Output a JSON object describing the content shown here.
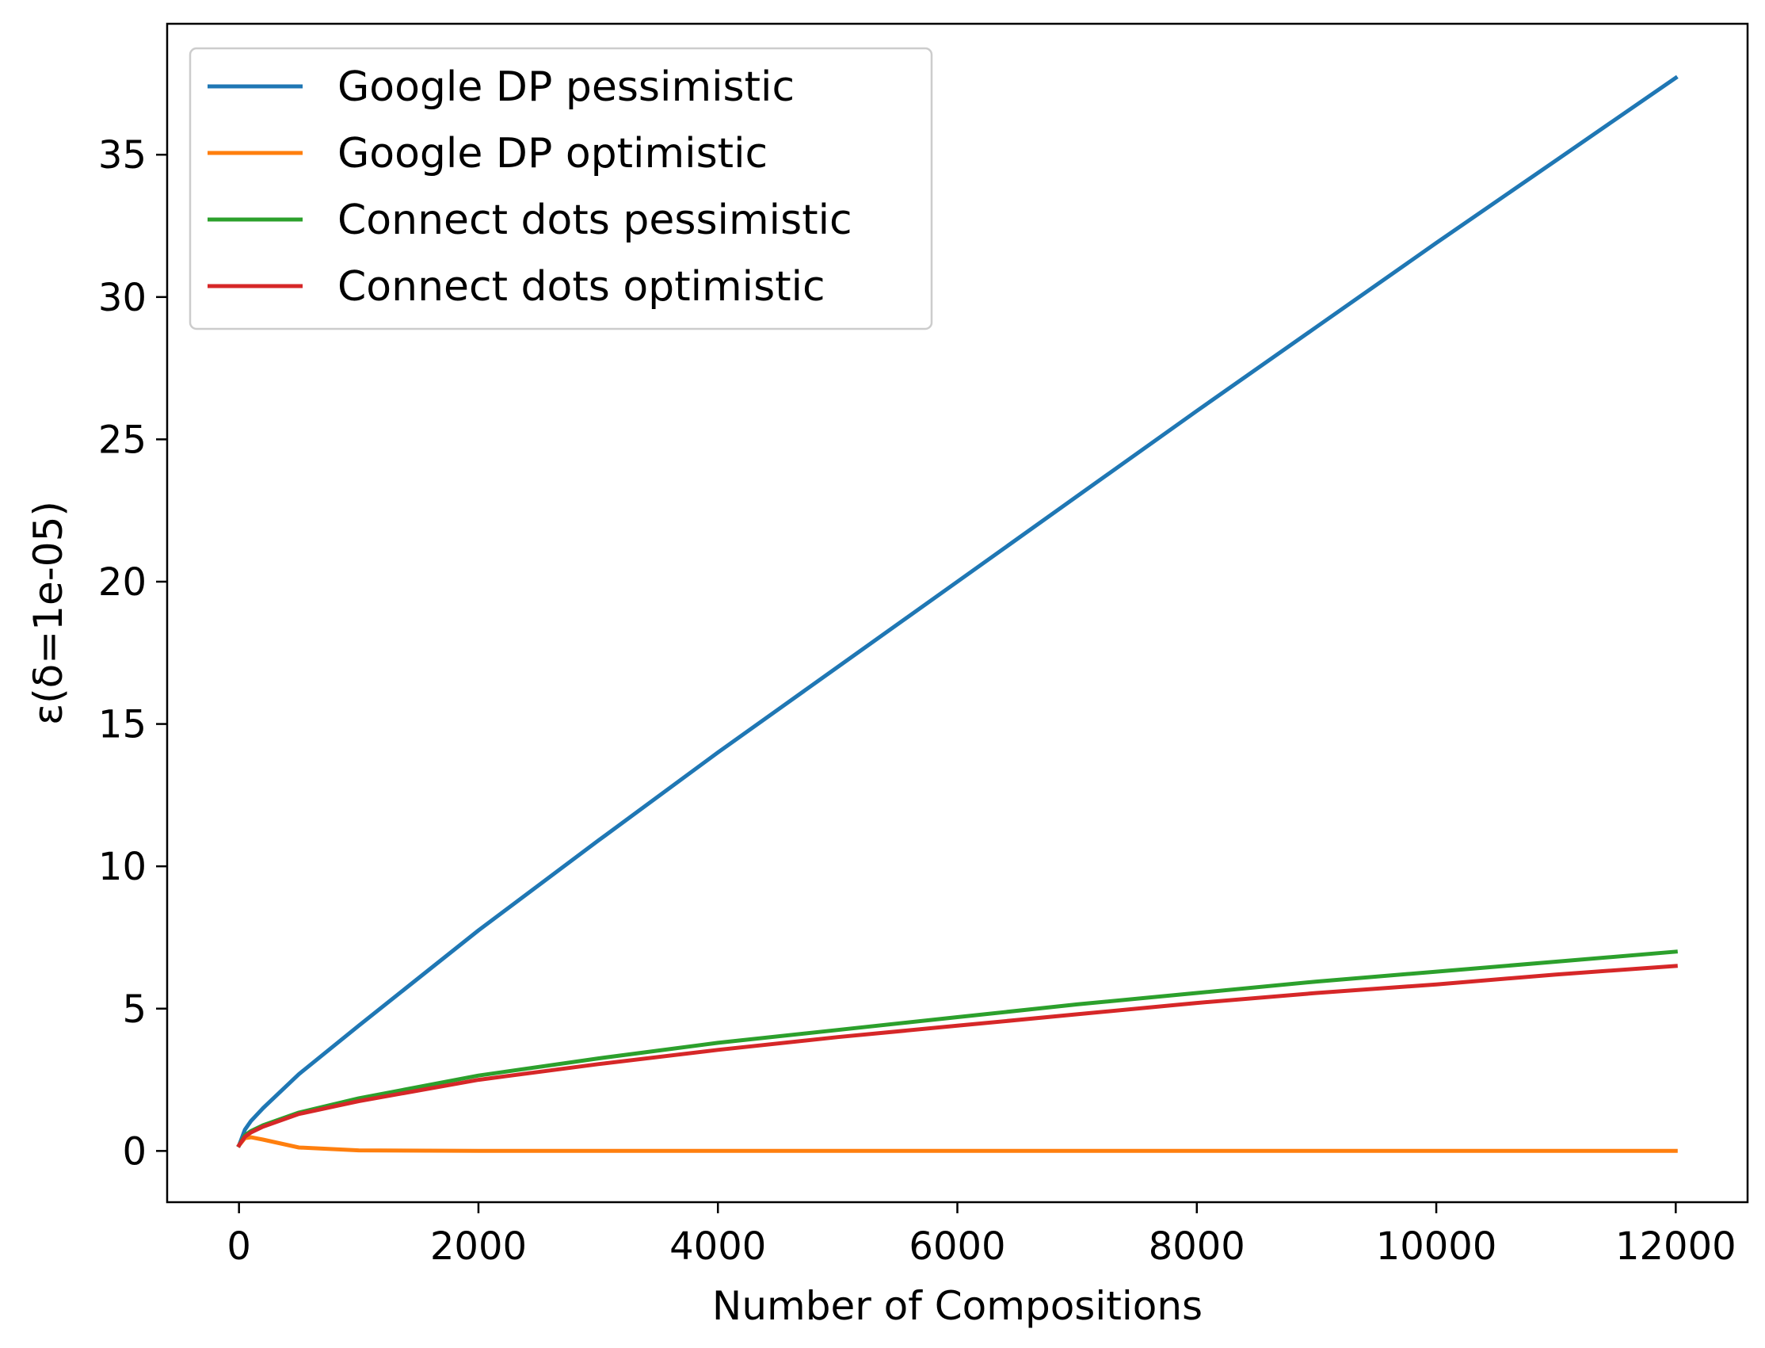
{
  "chart_data": {
    "type": "line",
    "title": "",
    "xlabel": "Number of Compositions",
    "ylabel": "ε(δ=1e-05)",
    "xlim": [
      -600,
      12600
    ],
    "ylim": [
      -1.8,
      39.6
    ],
    "xticks": [
      0,
      2000,
      4000,
      6000,
      8000,
      10000,
      12000
    ],
    "xtick_labels": [
      "0",
      "2000",
      "4000",
      "6000",
      "8000",
      "10000",
      "12000"
    ],
    "yticks": [
      0,
      5,
      10,
      15,
      20,
      25,
      30,
      35
    ],
    "ytick_labels": [
      "0",
      "5",
      "10",
      "15",
      "20",
      "25",
      "30",
      "35"
    ],
    "grid": false,
    "legend_position": "top-left",
    "series": [
      {
        "name": "Google DP pessimistic",
        "color": "#1f77b4",
        "x": [
          1,
          50,
          100,
          200,
          500,
          1000,
          2000,
          3000,
          4000,
          5000,
          6000,
          7000,
          8000,
          9000,
          10000,
          11000,
          12000
        ],
        "y": [
          0.2,
          0.75,
          1.05,
          1.5,
          2.7,
          4.4,
          7.75,
          10.9,
          14.0,
          17.0,
          20.0,
          23.0,
          26.0,
          28.95,
          31.9,
          34.8,
          37.7
        ]
      },
      {
        "name": "Google DP optimistic",
        "color": "#ff7f0e",
        "x": [
          1,
          50,
          100,
          200,
          500,
          1000,
          2000,
          4000,
          6000,
          8000,
          10000,
          12000
        ],
        "y": [
          0.2,
          0.45,
          0.48,
          0.4,
          0.12,
          0.02,
          0.0,
          0.0,
          0.0,
          0.0,
          0.0,
          0.0
        ]
      },
      {
        "name": "Connect dots pessimistic",
        "color": "#2ca02c",
        "x": [
          1,
          50,
          100,
          200,
          500,
          1000,
          2000,
          3000,
          4000,
          5000,
          6000,
          7000,
          8000,
          9000,
          10000,
          11000,
          12000
        ],
        "y": [
          0.2,
          0.55,
          0.7,
          0.9,
          1.35,
          1.85,
          2.65,
          3.25,
          3.8,
          4.25,
          4.7,
          5.15,
          5.55,
          5.95,
          6.3,
          6.65,
          7.0
        ]
      },
      {
        "name": "Connect dots optimistic",
        "color": "#d62728",
        "x": [
          1,
          50,
          100,
          200,
          500,
          1000,
          2000,
          3000,
          4000,
          5000,
          6000,
          7000,
          8000,
          9000,
          10000,
          11000,
          12000
        ],
        "y": [
          0.2,
          0.5,
          0.65,
          0.85,
          1.3,
          1.75,
          2.5,
          3.05,
          3.55,
          4.0,
          4.4,
          4.8,
          5.2,
          5.55,
          5.85,
          6.2,
          6.5
        ]
      }
    ]
  }
}
